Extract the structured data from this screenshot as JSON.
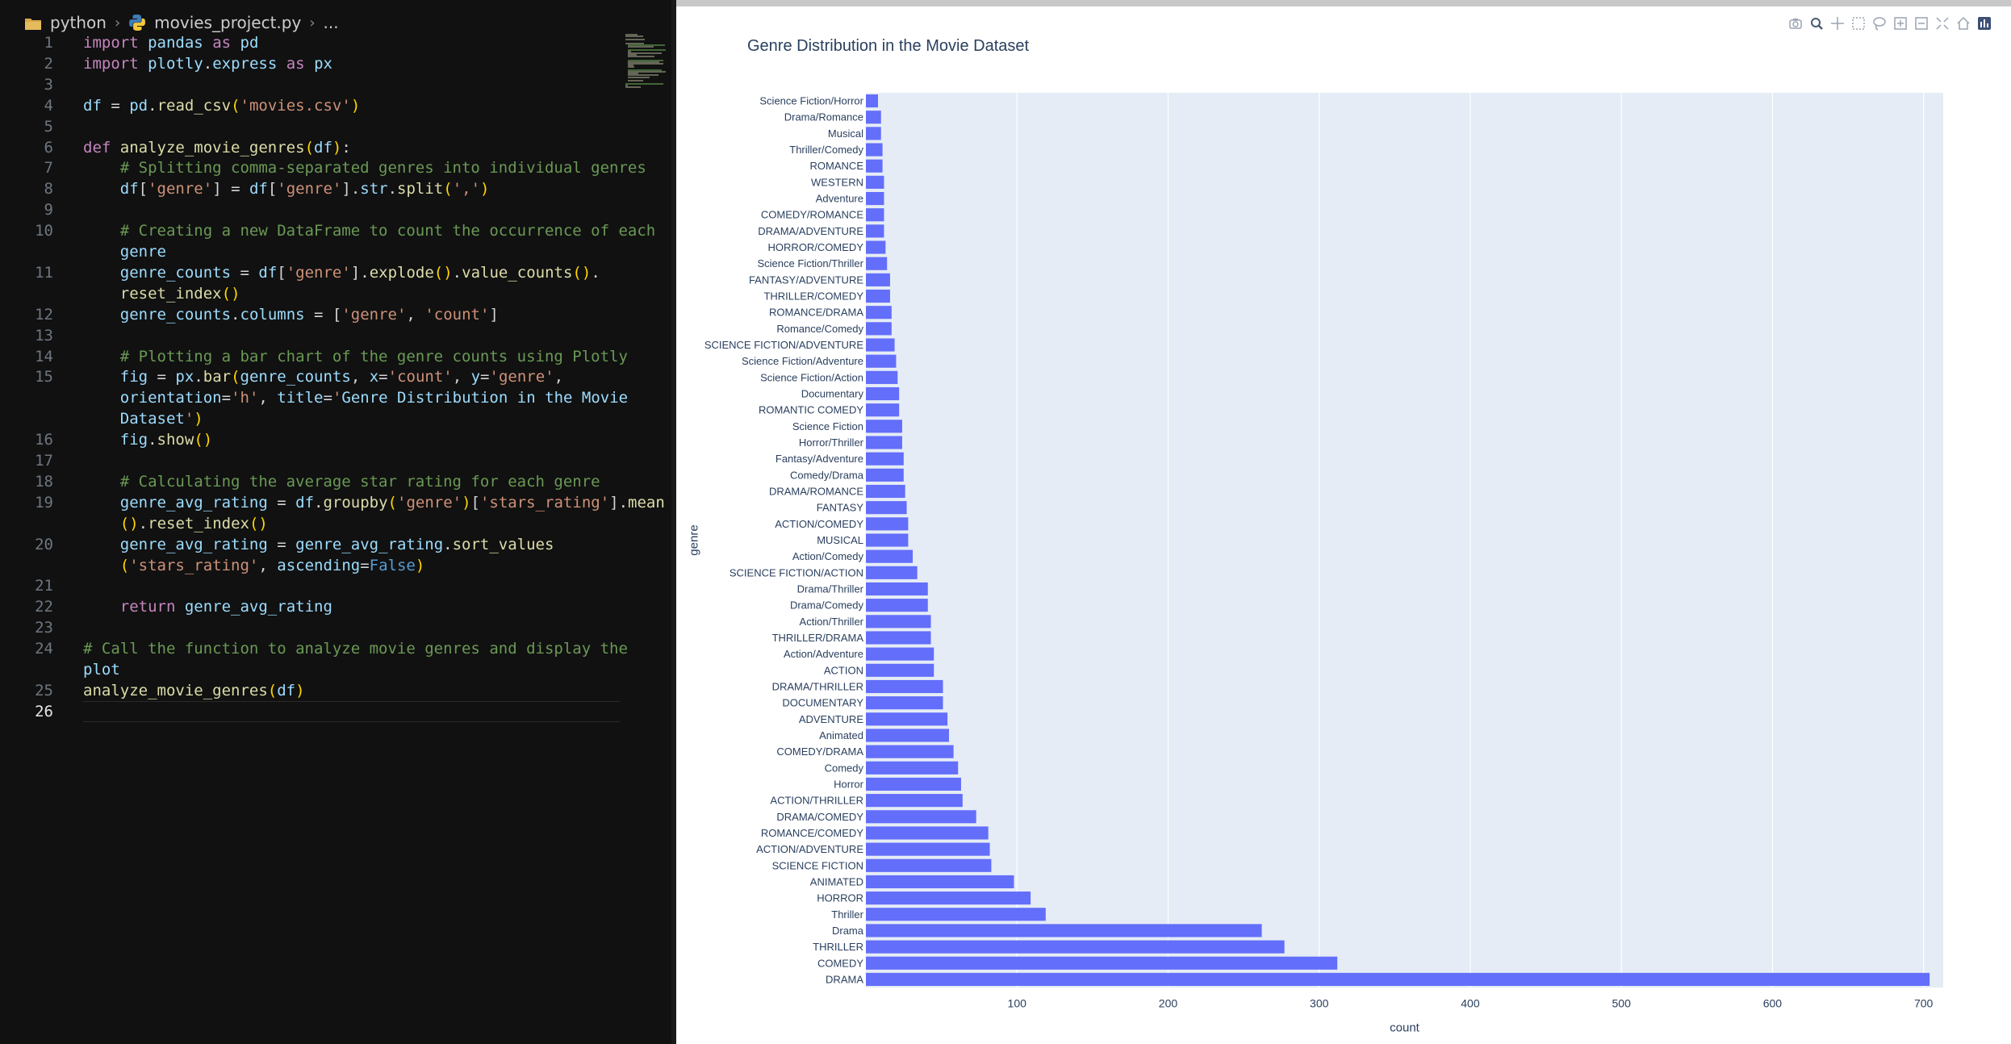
{
  "editor": {
    "breadcrumb": {
      "folder": "python",
      "file": "movies_project.py",
      "more": "..."
    },
    "current_line": 26,
    "lines": [
      {
        "n": "1",
        "text": "import pandas as pd"
      },
      {
        "n": "2",
        "text": "import plotly.express as px"
      },
      {
        "n": "3",
        "text": ""
      },
      {
        "n": "4",
        "text": "df = pd.read_csv('movies.csv')"
      },
      {
        "n": "5",
        "text": ""
      },
      {
        "n": "6",
        "text": "def analyze_movie_genres(df):"
      },
      {
        "n": "7",
        "text": "    # Splitting comma-separated genres into individual genres"
      },
      {
        "n": "8",
        "text": "    df['genre'] = df['genre'].str.split(',')"
      },
      {
        "n": "9",
        "text": ""
      },
      {
        "n": "10",
        "text": "    # Creating a new DataFrame to count the occurrence of each"
      },
      {
        "n": "",
        "text": "    genre"
      },
      {
        "n": "11",
        "text": "    genre_counts = df['genre'].explode().value_counts()."
      },
      {
        "n": "",
        "text": "    reset_index()"
      },
      {
        "n": "12",
        "text": "    genre_counts.columns = ['genre', 'count']"
      },
      {
        "n": "13",
        "text": ""
      },
      {
        "n": "14",
        "text": "    # Plotting a bar chart of the genre counts using Plotly"
      },
      {
        "n": "15",
        "text": "    fig = px.bar(genre_counts, x='count', y='genre',"
      },
      {
        "n": "",
        "text": "    orientation='h', title='Genre Distribution in the Movie"
      },
      {
        "n": "",
        "text": "    Dataset')"
      },
      {
        "n": "16",
        "text": "    fig.show()"
      },
      {
        "n": "17",
        "text": ""
      },
      {
        "n": "18",
        "text": "    # Calculating the average star rating for each genre"
      },
      {
        "n": "19",
        "text": "    genre_avg_rating = df.groupby('genre')['stars_rating'].mean"
      },
      {
        "n": "",
        "text": "    ().reset_index()"
      },
      {
        "n": "20",
        "text": "    genre_avg_rating = genre_avg_rating.sort_values"
      },
      {
        "n": "",
        "text": "    ('stars_rating', ascending=False)"
      },
      {
        "n": "21",
        "text": ""
      },
      {
        "n": "22",
        "text": "    return genre_avg_rating"
      },
      {
        "n": "23",
        "text": ""
      },
      {
        "n": "24",
        "text": "# Call the function to analyze movie genres and display the"
      },
      {
        "n": "",
        "text": "plot"
      },
      {
        "n": "25",
        "text": "analyze_movie_genres(df)"
      },
      {
        "n": "26",
        "text": ""
      }
    ]
  },
  "plot": {
    "modebar_icons": [
      "camera-icon",
      "zoom-icon",
      "pan-icon",
      "box-select-icon",
      "lasso-icon",
      "zoom-in-icon",
      "zoom-out-icon",
      "autoscale-icon",
      "home-icon",
      "plotly-logo-icon"
    ]
  },
  "chart_data": {
    "type": "bar",
    "orientation": "h",
    "title": "Genre Distribution in the Movie Dataset",
    "xlabel": "count",
    "ylabel": "genre",
    "xlim": [
      0,
      713
    ],
    "xticks": [
      100,
      200,
      300,
      400,
      500,
      600,
      700
    ],
    "grid": true,
    "bar_color": "#636efa",
    "plot_bgcolor": "#e5ecf6",
    "categories": [
      "Science Fiction/Horror",
      "Drama/Romance",
      "Musical",
      "Thriller/Comedy",
      "ROMANCE",
      "WESTERN",
      "Adventure",
      "COMEDY/ROMANCE",
      "DRAMA/ADVENTURE",
      "HORROR/COMEDY",
      "Science Fiction/Thriller",
      "FANTASY/ADVENTURE",
      "THRILLER/COMEDY",
      "ROMANCE/DRAMA",
      "Romance/Comedy",
      "SCIENCE FICTION/ADVENTURE",
      "Science Fiction/Adventure",
      "Science Fiction/Action",
      "Documentary",
      "ROMANTIC COMEDY",
      "Science Fiction",
      "Horror/Thriller",
      "Fantasy/Adventure",
      "Comedy/Drama",
      "DRAMA/ROMANCE",
      "FANTASY",
      "ACTION/COMEDY",
      "MUSICAL",
      "Action/Comedy",
      "SCIENCE FICTION/ACTION",
      "Drama/Thriller",
      "Drama/Comedy",
      "Action/Thriller",
      "THRILLER/DRAMA",
      "Action/Adventure",
      "ACTION",
      "DRAMA/THRILLER",
      "DOCUMENTARY",
      "ADVENTURE",
      "Animated",
      "COMEDY/DRAMA",
      "Comedy",
      "Horror",
      "ACTION/THRILLER",
      "DRAMA/COMEDY",
      "ROMANCE/COMEDY",
      "ACTION/ADVENTURE",
      "SCIENCE FICTION",
      "ANIMATED",
      "HORROR",
      "Thriller",
      "Drama",
      "THRILLER",
      "COMEDY",
      "DRAMA"
    ],
    "values": [
      8,
      10,
      10,
      11,
      11,
      12,
      12,
      12,
      12,
      13,
      14,
      16,
      16,
      17,
      17,
      19,
      20,
      21,
      22,
      22,
      24,
      24,
      25,
      25,
      26,
      27,
      28,
      28,
      31,
      34,
      41,
      41,
      43,
      43,
      45,
      45,
      51,
      51,
      54,
      55,
      58,
      61,
      63,
      64,
      73,
      81,
      82,
      83,
      98,
      109,
      119,
      262,
      277,
      312,
      704
    ]
  }
}
